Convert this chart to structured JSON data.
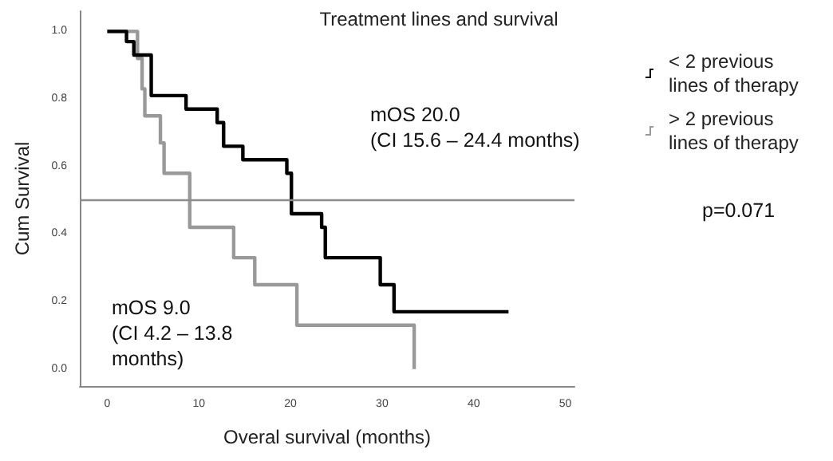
{
  "chart_data": {
    "type": "step",
    "title": "Treatment lines and survival",
    "xlabel": "Overal survival (months)",
    "ylabel": "Cum Survival",
    "xlim": [
      -3,
      51
    ],
    "xticks": [
      0,
      10,
      20,
      30,
      40,
      50
    ],
    "ylim": [
      -0.05,
      1.06
    ],
    "yticks": [
      {
        "value": 0,
        "label": "0.0"
      },
      {
        "value": 0.2,
        "label": "0.2"
      },
      {
        "value": 0.4,
        "label": "0.4"
      },
      {
        "value": 0.6,
        "label": "0.6"
      },
      {
        "value": 0.8,
        "label": "0.8"
      },
      {
        "value": 1,
        "label": "1.0"
      }
    ],
    "series": [
      {
        "name": "< 2 previous lines of therapy",
        "color": "#000000",
        "x": [
          0,
          2.1,
          2.9,
          4.8,
          8.6,
          12.0,
          12.7,
          14.8,
          19.6,
          20.1,
          23.4,
          23.8,
          29.8,
          31.3,
          43.8
        ],
        "values": [
          1,
          0.97,
          0.93,
          0.81,
          0.77,
          0.73,
          0.66,
          0.62,
          0.58,
          0.46,
          0.42,
          0.33,
          0.25,
          0.17,
          0.17
        ]
      },
      {
        "name": "> 2 previous lines of therapy",
        "color": "#999999",
        "x": [
          0,
          3.3,
          3.8,
          4.1,
          5.8,
          6.2,
          9.0,
          13.8,
          16.1,
          20.7,
          33.5
        ],
        "values": [
          1,
          0.92,
          0.83,
          0.75,
          0.67,
          0.58,
          0.42,
          0.33,
          0.25,
          0.13,
          0
        ]
      }
    ],
    "ref_lines": [
      {
        "axis": "y",
        "value": 0.5,
        "color": "#8c8c8c"
      }
    ],
    "annotations": [
      "mOS 20.0\n(CI 15.6 – 24.4 months)",
      "mOS 9.0\n(CI 4.2 – 13.8\nmonths)",
      "p=0.071"
    ],
    "legend": "right",
    "marker": "none",
    "grid": false
  }
}
